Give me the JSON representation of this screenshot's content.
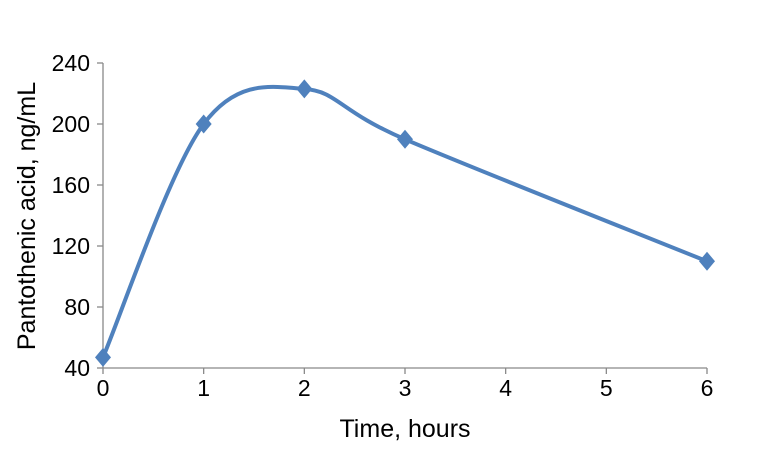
{
  "chart_data": {
    "type": "line",
    "title": "",
    "x": [
      0,
      1,
      2,
      3,
      6
    ],
    "y": [
      47,
      200,
      223,
      190,
      110
    ],
    "xlabel": "Time, hours",
    "ylabel": "Pantothenic acid, ng/mL",
    "x_ticks": [
      0,
      1,
      2,
      3,
      4,
      5,
      6
    ],
    "y_ticks": [
      40,
      80,
      120,
      160,
      200,
      240
    ],
    "xlim": [
      0,
      6
    ],
    "ylim": [
      40,
      240
    ],
    "grid": false,
    "legend": false,
    "line_smooth": true,
    "marker": "diamond",
    "colors": {
      "line": "#4F81BD",
      "marker": "#4F81BD",
      "axis": "#898989",
      "text": "#000000",
      "background": "#FFFFFF"
    }
  }
}
